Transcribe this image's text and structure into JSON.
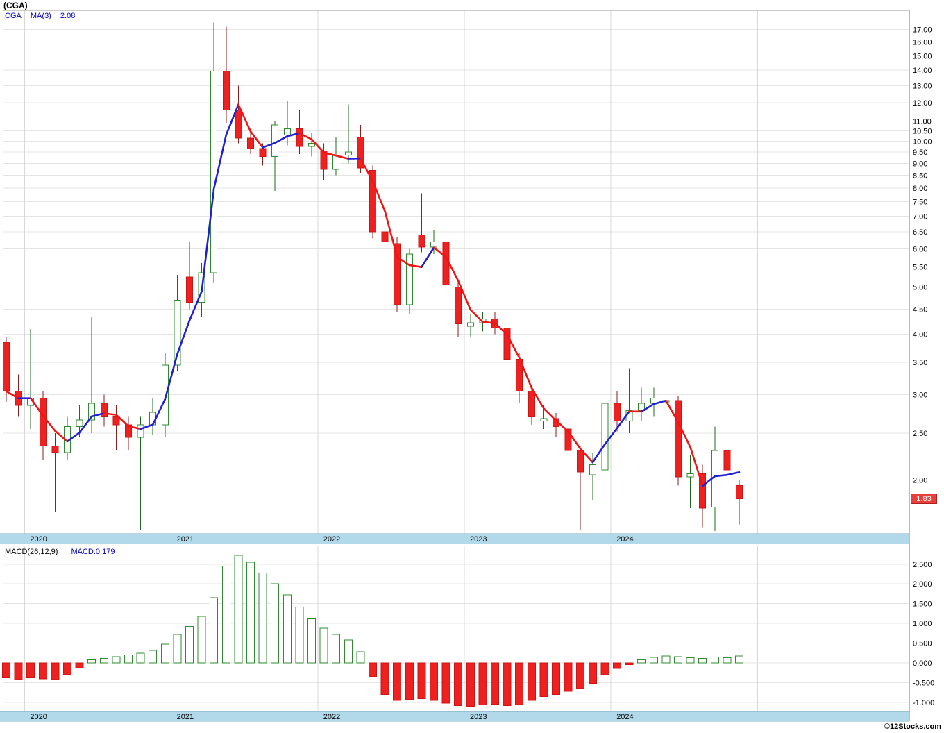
{
  "title": "(CGA)",
  "legend": {
    "symbol": "CGA",
    "ma_label": "MA(3)",
    "ma_value": "2.08"
  },
  "macd_legend": {
    "label": "MACD(26,12,9)",
    "value_label": "MACD:0.179"
  },
  "last_price_label": "1.83",
  "copyright": "©12Stocks.com",
  "colors": {
    "up_candle_border": "#2e8b2e",
    "up_candle_fill": "#ffffff",
    "down_candle_fill": "#ee2020",
    "down_candle_border": "#cc1515",
    "up_wick": "#1d6b1d",
    "down_wick": "#8c1f1f",
    "ma_up": "#1f1fd4",
    "ma_down": "#ee1515",
    "grid": "#e4e4e4",
    "year_grid": "#d8d8d8",
    "axis_band": "#b2d9ea",
    "band_edge": "#7fa8bc",
    "frame": "#999999",
    "text": "#000000"
  },
  "chart_data": [
    {
      "type": "candlestick",
      "title": "CGA monthly price with MA(3)",
      "interval": "monthly",
      "start": "2019-11",
      "y_scale": "log",
      "ylim": [
        1.55,
        18.6
      ],
      "yticks": [
        17,
        16,
        15,
        14,
        13,
        12,
        11,
        10.5,
        10,
        9.5,
        9,
        8.5,
        8,
        7.5,
        7,
        6.5,
        6,
        5.5,
        5,
        4.5,
        4,
        3.5,
        3,
        2.5,
        2
      ],
      "x_year_labels": [
        "2020",
        "2021",
        "2022",
        "2023",
        "2024"
      ],
      "year_start_indices": [
        2,
        14,
        26,
        38,
        50,
        62
      ],
      "ma_period": 3,
      "last_close": 1.83,
      "candles": [
        [
          3.85,
          3.95,
          2.9,
          3.05
        ],
        [
          3.05,
          3.3,
          2.7,
          2.85
        ],
        [
          2.85,
          4.1,
          2.55,
          2.95
        ],
        [
          2.95,
          3.05,
          2.2,
          2.35
        ],
        [
          2.35,
          2.5,
          1.72,
          2.28
        ],
        [
          2.28,
          2.7,
          2.2,
          2.58
        ],
        [
          2.58,
          2.85,
          2.45,
          2.66
        ],
        [
          2.66,
          4.35,
          2.5,
          2.88
        ],
        [
          2.88,
          3.0,
          2.58,
          2.7
        ],
        [
          2.7,
          2.85,
          2.3,
          2.6
        ],
        [
          2.6,
          2.7,
          2.3,
          2.45
        ],
        [
          2.45,
          2.7,
          1.58,
          2.6
        ],
        [
          2.6,
          2.95,
          2.48,
          2.76
        ],
        [
          2.6,
          3.65,
          2.45,
          3.45
        ],
        [
          3.45,
          5.3,
          3.35,
          4.7
        ],
        [
          5.25,
          6.2,
          4.5,
          4.65
        ],
        [
          4.65,
          5.6,
          4.35,
          5.35
        ],
        [
          5.35,
          17.55,
          5.1,
          13.95
        ],
        [
          13.95,
          17.2,
          10.9,
          11.6
        ],
        [
          11.6,
          13.0,
          9.9,
          10.15
        ],
        [
          10.15,
          10.6,
          9.4,
          9.65
        ],
        [
          9.65,
          9.9,
          8.9,
          9.3
        ],
        [
          9.3,
          11.0,
          7.9,
          10.8
        ],
        [
          10.3,
          12.1,
          9.8,
          10.6
        ],
        [
          10.6,
          11.6,
          9.4,
          9.75
        ],
        [
          9.75,
          10.4,
          9.3,
          9.9
        ],
        [
          9.55,
          9.9,
          8.3,
          8.75
        ],
        [
          8.75,
          10.2,
          8.5,
          9.35
        ],
        [
          9.35,
          11.9,
          9.0,
          9.5
        ],
        [
          10.2,
          10.8,
          8.6,
          8.8
        ],
        [
          8.7,
          8.9,
          6.3,
          6.5
        ],
        [
          6.5,
          6.9,
          5.95,
          6.2
        ],
        [
          6.15,
          6.35,
          4.45,
          4.6
        ],
        [
          4.6,
          6.0,
          4.4,
          5.85
        ],
        [
          6.4,
          7.8,
          5.9,
          6.05
        ],
        [
          6.05,
          6.55,
          5.85,
          6.2
        ],
        [
          6.2,
          6.3,
          4.95,
          5.05
        ],
        [
          5.0,
          5.1,
          3.95,
          4.2
        ],
        [
          4.15,
          4.4,
          3.95,
          4.22
        ],
        [
          4.22,
          4.45,
          4.05,
          4.3
        ],
        [
          4.3,
          4.45,
          4.0,
          4.12
        ],
        [
          4.12,
          4.25,
          3.45,
          3.55
        ],
        [
          3.55,
          3.65,
          2.88,
          3.05
        ],
        [
          3.05,
          3.15,
          2.6,
          2.7
        ],
        [
          2.65,
          2.85,
          2.55,
          2.68
        ],
        [
          2.68,
          2.75,
          2.45,
          2.58
        ],
        [
          2.55,
          2.6,
          2.22,
          2.3
        ],
        [
          2.3,
          2.35,
          1.58,
          2.08
        ],
        [
          2.05,
          2.28,
          1.82,
          2.15
        ],
        [
          2.1,
          3.95,
          2.0,
          2.88
        ],
        [
          2.88,
          3.05,
          2.52,
          2.65
        ],
        [
          2.65,
          3.4,
          2.5,
          2.78
        ],
        [
          2.78,
          3.1,
          2.65,
          2.88
        ],
        [
          2.88,
          3.1,
          2.7,
          2.95
        ],
        [
          2.9,
          3.05,
          2.72,
          2.92
        ],
        [
          2.92,
          2.98,
          1.95,
          2.03
        ],
        [
          2.03,
          2.25,
          1.75,
          2.06
        ],
        [
          2.06,
          2.15,
          1.6,
          1.75
        ],
        [
          1.76,
          2.58,
          1.57,
          2.3
        ],
        [
          2.3,
          2.35,
          1.85,
          2.1
        ],
        [
          1.95,
          2.0,
          1.62,
          1.83
        ]
      ]
    },
    {
      "type": "bar",
      "title": "MACD(26,12,9) histogram",
      "interval": "monthly",
      "ylim": [
        -1.21,
        2.97
      ],
      "yticks": [
        2.5,
        2.0,
        1.5,
        1.0,
        0.5,
        0.0,
        -0.5,
        -1.0
      ],
      "last_value": 0.179,
      "values": [
        -0.38,
        -0.42,
        -0.38,
        -0.4,
        -0.42,
        -0.3,
        -0.12,
        0.08,
        0.12,
        0.16,
        0.2,
        0.25,
        0.32,
        0.48,
        0.72,
        0.92,
        1.18,
        1.65,
        2.45,
        2.72,
        2.55,
        2.28,
        2.0,
        1.72,
        1.42,
        1.12,
        0.88,
        0.72,
        0.58,
        0.28,
        -0.35,
        -0.8,
        -0.95,
        -0.92,
        -0.9,
        -0.95,
        -1.02,
        -1.08,
        -1.1,
        -1.06,
        -1.04,
        -1.08,
        -1.05,
        -0.95,
        -0.85,
        -0.8,
        -0.72,
        -0.65,
        -0.52,
        -0.3,
        -0.14,
        -0.04,
        0.08,
        0.14,
        0.18,
        0.16,
        0.13,
        0.12,
        0.15,
        0.13,
        0.179
      ]
    }
  ]
}
